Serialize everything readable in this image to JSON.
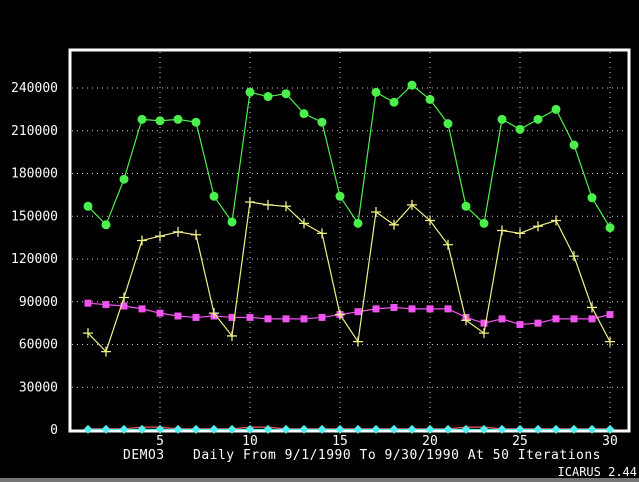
{
  "footer": {
    "demo_label": "DEMO3",
    "title": "Daily From 9/1/1990 To 9/30/1990 At 50 Iterations",
    "version": "ICARUS 2.44"
  },
  "colors": {
    "background": "#000000",
    "frame": "#fcfcfc",
    "grid": "#d0d0d0",
    "green_series": "#4cf04c",
    "yellow_series": "#f0f088",
    "magenta_series": "#f054f0",
    "cyan_series": "#54f0f0",
    "red_series": "#f05c5c",
    "text": "#fcfcfc"
  },
  "chart_data": {
    "type": "line",
    "title": "DEMO3  Daily From 9/1/1990 To 9/30/1990 At 50 Iterations",
    "xlabel": "",
    "ylabel": "",
    "grid": true,
    "legend_position": "none",
    "xlim": [
      0,
      31
    ],
    "ylim": [
      0,
      266000
    ],
    "xticks": [
      5,
      10,
      15,
      20,
      25,
      30
    ],
    "yticks": [
      0,
      30000,
      60000,
      90000,
      120000,
      150000,
      180000,
      210000,
      240000
    ],
    "x": [
      1,
      2,
      3,
      4,
      5,
      6,
      7,
      8,
      9,
      10,
      11,
      12,
      13,
      14,
      15,
      16,
      17,
      18,
      19,
      20,
      21,
      22,
      23,
      24,
      25,
      26,
      27,
      28,
      29,
      30
    ],
    "series": [
      {
        "name": "green-series",
        "marker": "circle",
        "color": "#4cf04c",
        "values": [
          157000,
          144000,
          176000,
          218000,
          217000,
          218000,
          216000,
          164000,
          146000,
          237000,
          234000,
          236000,
          222000,
          216000,
          164000,
          145000,
          237000,
          230000,
          242000,
          232000,
          215000,
          157000,
          145000,
          218000,
          211000,
          218000,
          225000,
          200000,
          163000,
          142000
        ]
      },
      {
        "name": "yellow-series",
        "marker": "plus",
        "color": "#f0f088",
        "values": [
          68000,
          55000,
          93000,
          133000,
          136000,
          139000,
          137000,
          82000,
          66000,
          160000,
          158000,
          157000,
          145000,
          138000,
          81000,
          62000,
          153000,
          144000,
          158000,
          147000,
          130000,
          77000,
          68000,
          140000,
          138000,
          143000,
          147000,
          122000,
          86000,
          62000
        ]
      },
      {
        "name": "magenta-series",
        "marker": "square",
        "color": "#f054f0",
        "values": [
          89000,
          88000,
          87000,
          85000,
          82000,
          80000,
          79000,
          80000,
          79000,
          79000,
          78000,
          78000,
          78000,
          79000,
          81000,
          83000,
          85000,
          86000,
          85000,
          85000,
          85000,
          79000,
          75000,
          78000,
          74000,
          75000,
          78000,
          78000,
          78000,
          81000
        ]
      },
      {
        "name": "red-series",
        "marker": "none",
        "color": "#f05c5c",
        "values": [
          800,
          800,
          800,
          2000,
          2000,
          800,
          800,
          800,
          800,
          2000,
          2000,
          800,
          800,
          800,
          800,
          800,
          800,
          800,
          800,
          800,
          800,
          2000,
          2000,
          800,
          800,
          800,
          800,
          800,
          800,
          800
        ]
      },
      {
        "name": "cyan-series",
        "marker": "diamond",
        "color": "#54f0f0",
        "values": [
          400,
          400,
          400,
          400,
          400,
          400,
          400,
          400,
          400,
          400,
          400,
          400,
          400,
          400,
          400,
          400,
          400,
          400,
          400,
          400,
          400,
          400,
          400,
          400,
          400,
          400,
          400,
          400,
          400,
          400
        ]
      }
    ]
  }
}
